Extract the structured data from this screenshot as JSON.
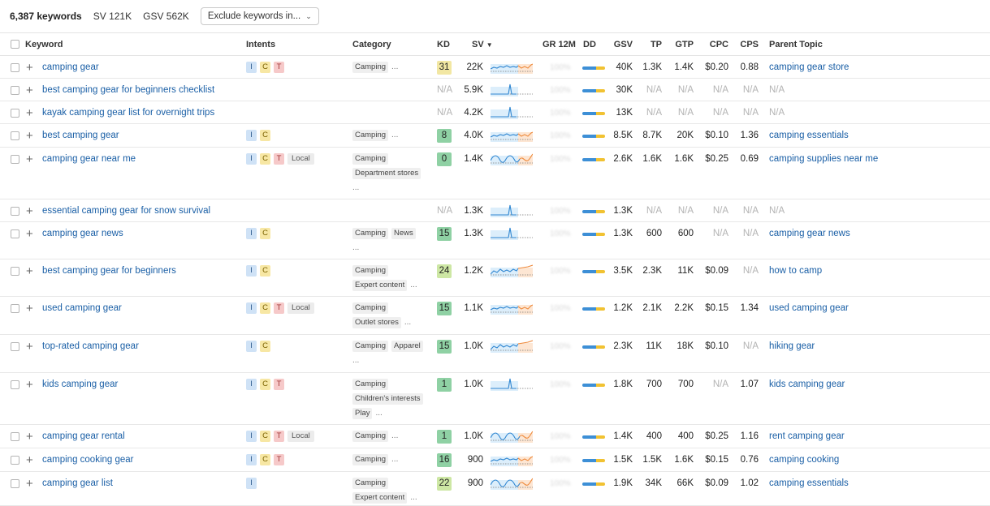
{
  "header": {
    "keywords_count": "6,387 keywords",
    "sv": "SV 121K",
    "gsv": "GSV 562K",
    "exclude_label": "Exclude keywords in..."
  },
  "columns": {
    "keyword": "Keyword",
    "intents": "Intents",
    "category": "Category",
    "kd": "KD",
    "sv": "SV",
    "gr": "GR 12M",
    "dd": "DD",
    "gsv": "GSV",
    "tp": "TP",
    "gtp": "GTP",
    "cpc": "CPC",
    "cps": "CPS",
    "parent": "Parent Topic"
  },
  "gr_placeholder": "100%",
  "rows": [
    {
      "keyword": "camping gear",
      "intents": [
        "I",
        "C",
        "T"
      ],
      "cats": [
        [
          "Camping",
          "..."
        ]
      ],
      "kd": "31",
      "kd_color": "#f2e7a3",
      "sv": "22K",
      "gsv": "40K",
      "tp": "1.3K",
      "gtp": "1.4K",
      "cpc": "$0.20",
      "cps": "0.88",
      "parent": "camping gear store",
      "spark": "mixed"
    },
    {
      "keyword": "best camping gear for beginners checklist",
      "intents": [],
      "cats": [],
      "kd": "N/A",
      "kd_color": "",
      "sv": "5.9K",
      "gsv": "30K",
      "tp": "N/A",
      "gtp": "N/A",
      "cpc": "N/A",
      "cps": "N/A",
      "parent": "N/A",
      "spark": "spike"
    },
    {
      "keyword": "kayak camping gear list for overnight trips",
      "intents": [],
      "cats": [],
      "kd": "N/A",
      "kd_color": "",
      "sv": "4.2K",
      "gsv": "13K",
      "tp": "N/A",
      "gtp": "N/A",
      "cpc": "N/A",
      "cps": "N/A",
      "parent": "N/A",
      "spark": "spike"
    },
    {
      "keyword": "best camping gear",
      "intents": [
        "I",
        "C"
      ],
      "cats": [
        [
          "Camping",
          "..."
        ]
      ],
      "kd": "8",
      "kd_color": "#8fd1a4",
      "sv": "4.0K",
      "gsv": "8.5K",
      "tp": "8.7K",
      "gtp": "20K",
      "cpc": "$0.10",
      "cps": "1.36",
      "parent": "camping essentials",
      "spark": "mixed"
    },
    {
      "keyword": "camping gear near me",
      "intents": [
        "I",
        "C",
        "T",
        "Local"
      ],
      "cats": [
        [
          "Camping"
        ],
        [
          "Department stores"
        ],
        [
          "..."
        ]
      ],
      "kd": "0",
      "kd_color": "#8fd1a4",
      "sv": "1.4K",
      "gsv": "2.6K",
      "tp": "1.6K",
      "gtp": "1.6K",
      "cpc": "$0.25",
      "cps": "0.69",
      "parent": "camping supplies near me",
      "spark": "waves"
    },
    {
      "keyword": "essential camping gear for snow survival",
      "intents": [],
      "cats": [],
      "kd": "N/A",
      "kd_color": "",
      "sv": "1.3K",
      "gsv": "1.3K",
      "tp": "N/A",
      "gtp": "N/A",
      "cpc": "N/A",
      "cps": "N/A",
      "parent": "N/A",
      "spark": "spike"
    },
    {
      "keyword": "camping gear news",
      "intents": [
        "I",
        "C"
      ],
      "cats": [
        [
          "Camping",
          "News"
        ],
        [
          "..."
        ]
      ],
      "kd": "15",
      "kd_color": "#8fd1a4",
      "sv": "1.3K",
      "gsv": "1.3K",
      "tp": "600",
      "gtp": "600",
      "cpc": "N/A",
      "cps": "N/A",
      "parent": "camping gear news",
      "spark": "spike"
    },
    {
      "keyword": "best camping gear for beginners",
      "intents": [
        "I",
        "C"
      ],
      "cats": [
        [
          "Camping"
        ],
        [
          "Expert content",
          "..."
        ]
      ],
      "kd": "24",
      "kd_color": "#cde7a4",
      "sv": "1.2K",
      "gsv": "3.5K",
      "tp": "2.3K",
      "gtp": "11K",
      "cpc": "$0.09",
      "cps": "N/A",
      "parent": "how to camp",
      "spark": "rising"
    },
    {
      "keyword": "used camping gear",
      "intents": [
        "I",
        "C",
        "T",
        "Local"
      ],
      "cats": [
        [
          "Camping"
        ],
        [
          "Outlet stores",
          "..."
        ]
      ],
      "kd": "15",
      "kd_color": "#8fd1a4",
      "sv": "1.1K",
      "gsv": "1.2K",
      "tp": "2.1K",
      "gtp": "2.2K",
      "cpc": "$0.15",
      "cps": "1.34",
      "parent": "used camping gear",
      "spark": "mixed"
    },
    {
      "keyword": "top-rated camping gear",
      "intents": [
        "I",
        "C"
      ],
      "cats": [
        [
          "Camping",
          "Apparel"
        ],
        [
          "..."
        ]
      ],
      "kd": "15",
      "kd_color": "#8fd1a4",
      "sv": "1.0K",
      "gsv": "2.3K",
      "tp": "11K",
      "gtp": "18K",
      "cpc": "$0.10",
      "cps": "N/A",
      "parent": "hiking gear",
      "spark": "rising"
    },
    {
      "keyword": "kids camping gear",
      "intents": [
        "I",
        "C",
        "T"
      ],
      "cats": [
        [
          "Camping"
        ],
        [
          "Children's interests"
        ],
        [
          "Play",
          "..."
        ]
      ],
      "kd": "1",
      "kd_color": "#8fd1a4",
      "sv": "1.0K",
      "gsv": "1.8K",
      "tp": "700",
      "gtp": "700",
      "cpc": "N/A",
      "cps": "1.07",
      "parent": "kids camping gear",
      "spark": "spike"
    },
    {
      "keyword": "camping gear rental",
      "intents": [
        "I",
        "C",
        "T",
        "Local"
      ],
      "cats": [
        [
          "Camping",
          "..."
        ]
      ],
      "kd": "1",
      "kd_color": "#8fd1a4",
      "sv": "1.0K",
      "gsv": "1.4K",
      "tp": "400",
      "gtp": "400",
      "cpc": "$0.25",
      "cps": "1.16",
      "parent": "rent camping gear",
      "spark": "waves"
    },
    {
      "keyword": "camping cooking gear",
      "intents": [
        "I",
        "C",
        "T"
      ],
      "cats": [
        [
          "Camping",
          "..."
        ]
      ],
      "kd": "16",
      "kd_color": "#8fd1a4",
      "sv": "900",
      "gsv": "1.5K",
      "tp": "1.5K",
      "gtp": "1.6K",
      "cpc": "$0.15",
      "cps": "0.76",
      "parent": "camping cooking",
      "spark": "mixed"
    },
    {
      "keyword": "camping gear list",
      "intents": [
        "I"
      ],
      "cats": [
        [
          "Camping"
        ],
        [
          "Expert content",
          "..."
        ]
      ],
      "kd": "22",
      "kd_color": "#cde7a4",
      "sv": "900",
      "gsv": "1.9K",
      "tp": "34K",
      "gtp": "66K",
      "cpc": "$0.09",
      "cps": "1.02",
      "parent": "camping essentials",
      "spark": "waves"
    }
  ]
}
